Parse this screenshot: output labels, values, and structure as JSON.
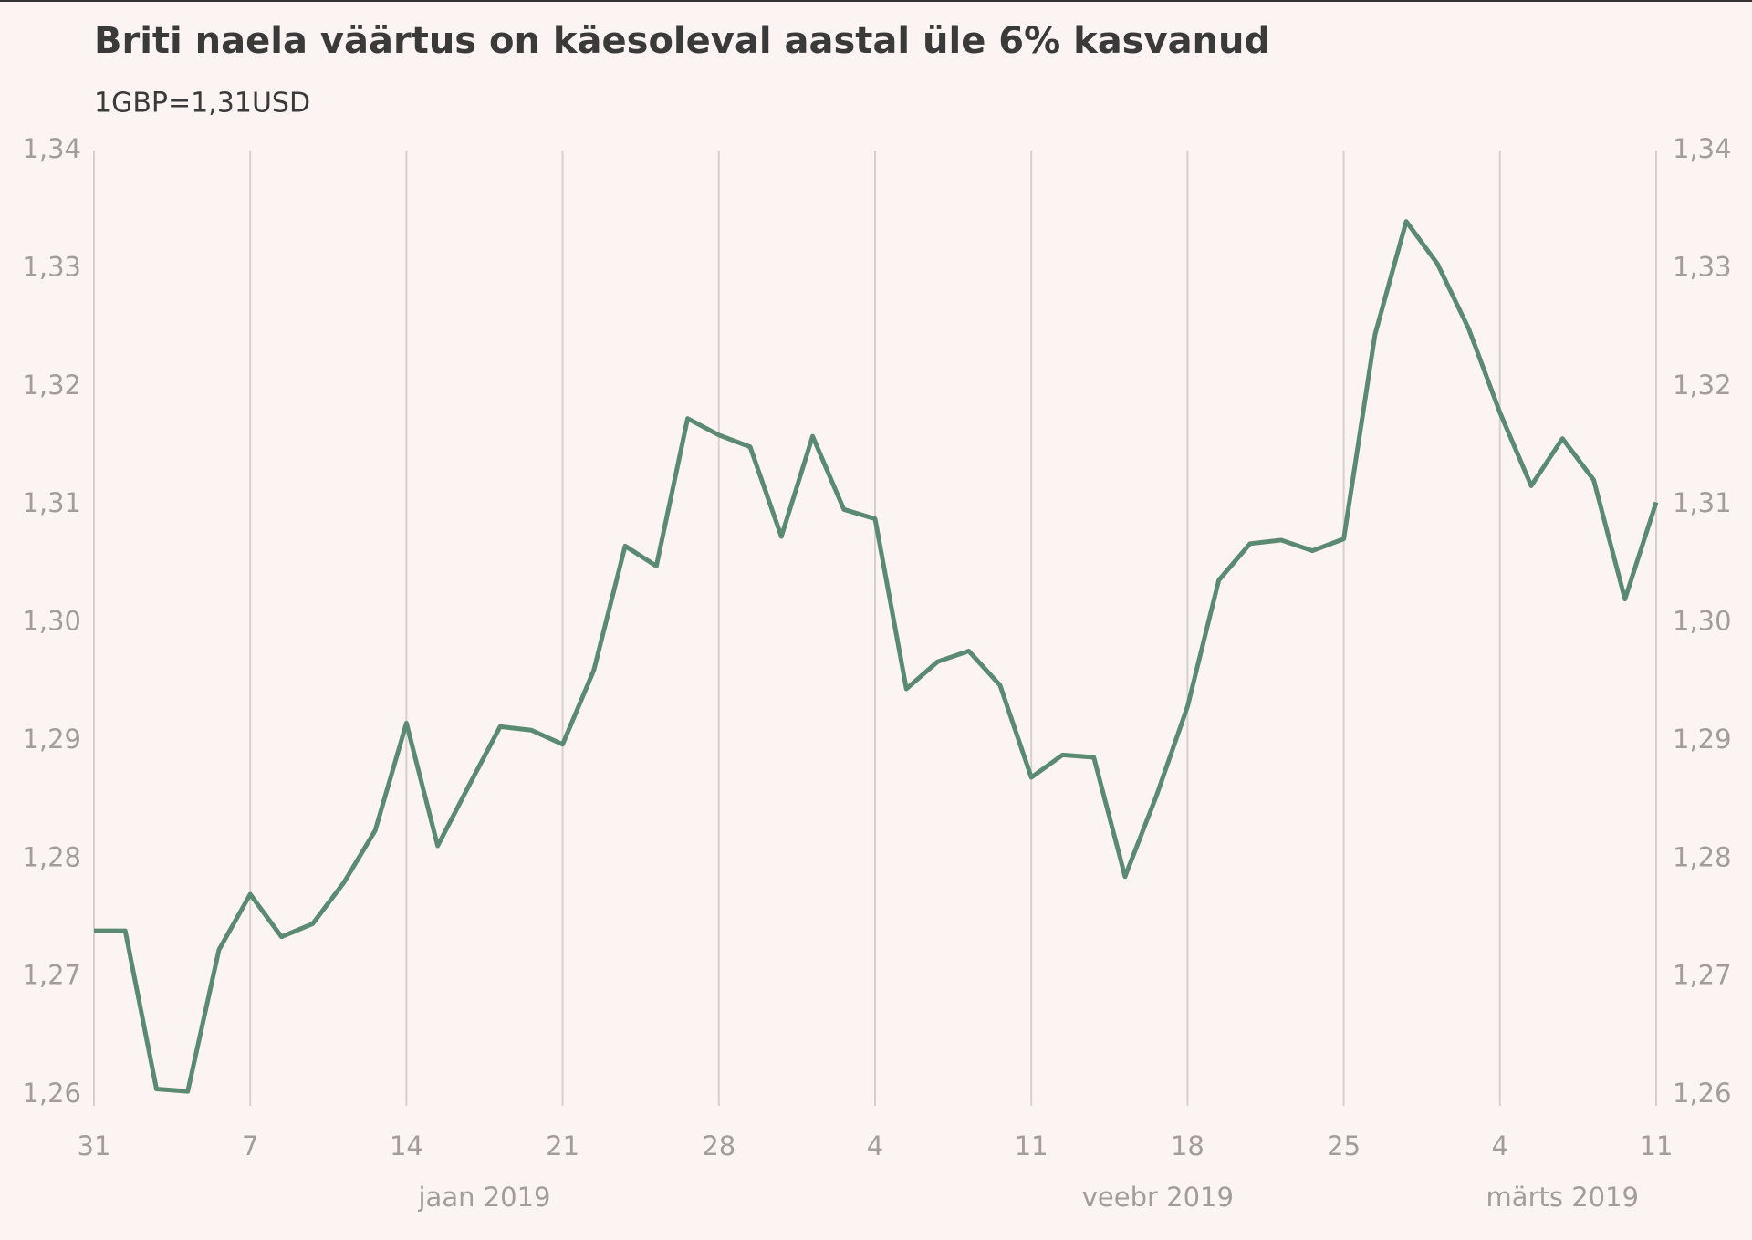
{
  "chart_data": {
    "type": "line",
    "title": "Briti naela väärtus on käesoleval aastal üle 6% kasvanud",
    "subtitle": "1GBP=1,31USD",
    "categories": [
      "31",
      null,
      null,
      null,
      null,
      "7",
      null,
      null,
      null,
      null,
      "14",
      null,
      null,
      null,
      null,
      "21",
      null,
      null,
      null,
      null,
      "28",
      null,
      null,
      null,
      null,
      "4",
      null,
      null,
      null,
      null,
      "11",
      null,
      null,
      null,
      null,
      "18",
      null,
      null,
      null,
      null,
      "25",
      null,
      null,
      null,
      null,
      "4",
      null,
      null,
      null,
      null,
      "11"
    ],
    "month_labels": [
      "jaan 2019",
      "veebr 2019",
      "märts 2019"
    ],
    "values": [
      1.2739,
      1.2739,
      1.2605,
      1.2603,
      1.2723,
      1.277,
      1.2734,
      1.2745,
      1.278,
      1.2824,
      1.2915,
      1.2811,
      1.2862,
      1.2912,
      1.2909,
      1.2897,
      1.296,
      1.3065,
      1.3048,
      1.3173,
      1.3159,
      1.3149,
      1.3073,
      1.3158,
      1.3096,
      1.3088,
      1.2944,
      1.2967,
      1.2976,
      1.2947,
      1.2869,
      1.2888,
      1.2886,
      1.2785,
      1.2853,
      1.2929,
      1.3036,
      1.3067,
      1.307,
      1.3061,
      1.3071,
      1.3244,
      1.334,
      1.3304,
      1.3249,
      1.3178,
      1.3116,
      1.3156,
      1.3121,
      1.302,
      1.3102
    ],
    "color": "#5b8a73",
    "ylim": [
      1.26,
      1.34
    ],
    "yticks": [
      {
        "value": 1.26,
        "label": "1,26"
      },
      {
        "value": 1.27,
        "label": "1,27"
      },
      {
        "value": 1.28,
        "label": "1,28"
      },
      {
        "value": 1.29,
        "label": "1,29"
      },
      {
        "value": 1.3,
        "label": "1,30"
      },
      {
        "value": 1.31,
        "label": "1,31"
      },
      {
        "value": 1.32,
        "label": "1,32"
      },
      {
        "value": 1.33,
        "label": "1,33"
      },
      {
        "value": 1.34,
        "label": "1,34"
      }
    ],
    "grid": "x"
  }
}
